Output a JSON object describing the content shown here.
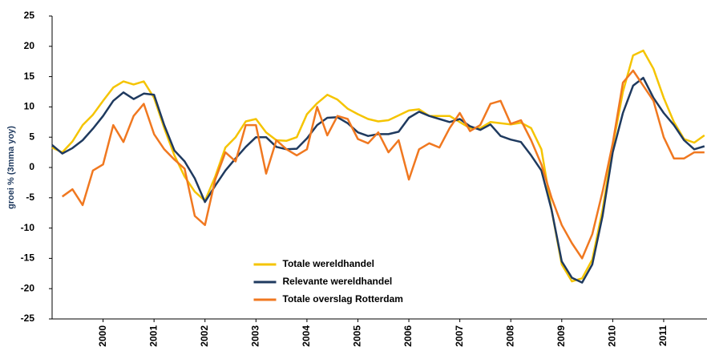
{
  "chart_data": {
    "type": "line",
    "y_label": "groei % (3mma yoy)",
    "x": [
      1999.0,
      1999.2,
      1999.4,
      1999.6,
      1999.8,
      2000.0,
      2000.2,
      2000.4,
      2000.6,
      2000.8,
      2001.0,
      2001.2,
      2001.4,
      2001.6,
      2001.8,
      2002.0,
      2002.2,
      2002.4,
      2002.6,
      2002.8,
      2003.0,
      2003.2,
      2003.4,
      2003.6,
      2003.8,
      2004.0,
      2004.2,
      2004.4,
      2004.6,
      2004.8,
      2005.0,
      2005.2,
      2005.4,
      2005.6,
      2005.8,
      2006.0,
      2006.2,
      2006.4,
      2006.6,
      2006.8,
      2007.0,
      2007.2,
      2007.4,
      2007.6,
      2007.8,
      2008.0,
      2008.2,
      2008.4,
      2008.6,
      2008.8,
      2009.0,
      2009.2,
      2009.4,
      2009.6,
      2009.8,
      2010.0,
      2010.2,
      2010.4,
      2010.6,
      2010.8,
      2011.0,
      2011.2,
      2011.4,
      2011.6,
      2011.8
    ],
    "series": [
      {
        "name": "Totale wereldhandel",
        "color": "#f5c400",
        "values": [
          3.3,
          2.5,
          4.3,
          7,
          8.7,
          11,
          13.2,
          14.2,
          13.7,
          14.2,
          11.5,
          6.5,
          2,
          -1.5,
          -4,
          -5.5,
          -1.5,
          3.3,
          5,
          7.6,
          8,
          5.8,
          4.5,
          4.4,
          5,
          8.8,
          10.6,
          12,
          11.2,
          9.7,
          8.8,
          8,
          7.6,
          7.8,
          8.6,
          9.4,
          9.6,
          8.5,
          8.5,
          8.5,
          7.5,
          6.5,
          6.5,
          7.5,
          7.3,
          7.1,
          7.4,
          6.5,
          3,
          -7,
          -16,
          -18.8,
          -18.3,
          -15.2,
          -7,
          3.5,
          12.5,
          18.5,
          19.3,
          16.3,
          11.5,
          7.5,
          4.7,
          4.1,
          5.3
        ]
      },
      {
        "name": "Relevante wereldhandel",
        "color": "#1f3a5f",
        "values": [
          3.7,
          2.3,
          3.2,
          4.5,
          6.4,
          8.5,
          11,
          12.4,
          11.3,
          12.2,
          12,
          7,
          2.8,
          1,
          -1.8,
          -5.7,
          -3,
          -0.5,
          1.5,
          3.4,
          5,
          5,
          3.4,
          3,
          3.1,
          4.8,
          7,
          8.2,
          8.3,
          7.3,
          5.8,
          5.2,
          5.5,
          5.5,
          5.9,
          8.2,
          9.2,
          8.5,
          8,
          7.5,
          8,
          6.8,
          6.2,
          7.1,
          5.2,
          4.6,
          4.2,
          2,
          -0.5,
          -7,
          -15.5,
          -18.2,
          -19,
          -16,
          -8,
          2.5,
          9,
          13.5,
          14.8,
          11.5,
          9,
          7,
          4.5,
          3,
          3.5
        ]
      },
      {
        "name": "Totale overslag Rotterdam",
        "color": "#f07820",
        "values": [
          null,
          -4.8,
          -3.6,
          -6.2,
          -0.5,
          0.5,
          7,
          4.2,
          8.5,
          10.5,
          5.5,
          3,
          1.3,
          -0.2,
          -8,
          -9.5,
          -2,
          2.5,
          1,
          7,
          7,
          -1,
          4.5,
          3,
          2,
          3,
          10,
          5.3,
          8.5,
          8,
          4.7,
          4,
          5.8,
          2.5,
          4.5,
          -2,
          3,
          4,
          3.3,
          6.5,
          9,
          6,
          7,
          10.5,
          11,
          7.2,
          7.8,
          4.5,
          0.5,
          -5,
          -9.5,
          -12.5,
          -15,
          -11,
          -4,
          4,
          14,
          16,
          13.5,
          11,
          5,
          1.5,
          1.5,
          2.5,
          2.5
        ]
      }
    ],
    "xlim": [
      1999.0,
      2011.85
    ],
    "xticks": [
      2000,
      2001,
      2002,
      2003,
      2004,
      2005,
      2006,
      2007,
      2008,
      2009,
      2010,
      2011
    ],
    "ylim": [
      -25,
      25
    ],
    "yticks": [
      -25,
      -20,
      -15,
      -10,
      -5,
      0,
      5,
      10,
      15,
      20,
      25
    ],
    "legend": "bottom-center",
    "grid": false
  }
}
